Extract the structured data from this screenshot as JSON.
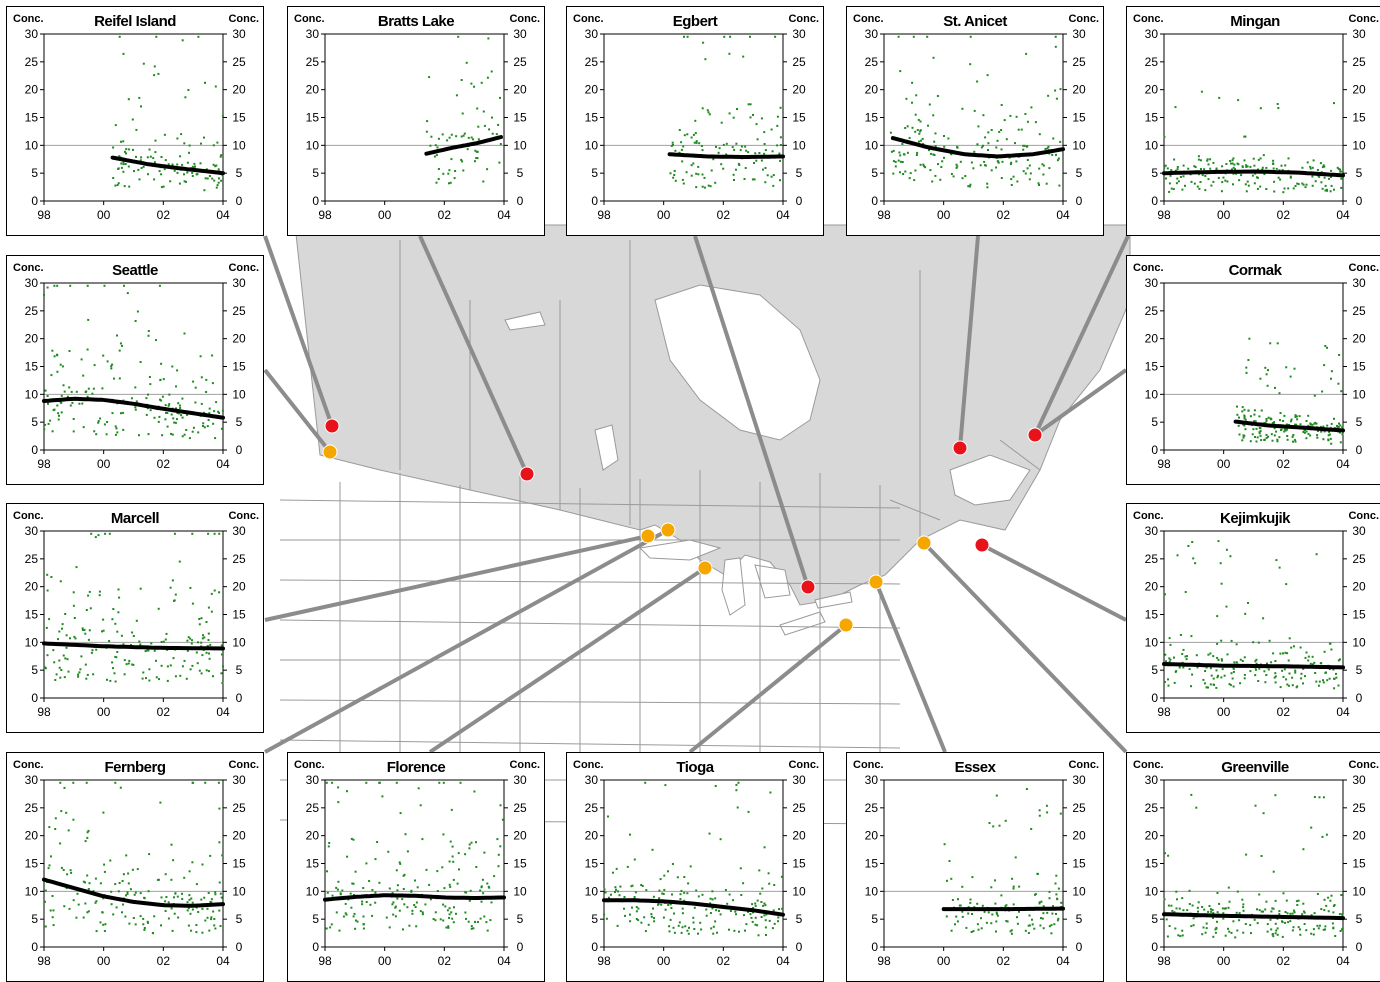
{
  "colors": {
    "land": "#d8d8d8",
    "border": "#9a9a9a",
    "water": "#ffffff",
    "leader": "#8c8c8c",
    "canada_site": "#e8121a",
    "us_site": "#f5a700",
    "points": "#1f8a1f",
    "trend": "#000000",
    "refline": "#a0a0a0"
  },
  "axis": {
    "unit_label": "Conc.",
    "y_ticks": [
      "0",
      "5",
      "10",
      "15",
      "20",
      "25",
      "30"
    ],
    "x_ticks": [
      "98",
      "00",
      "02",
      "04"
    ]
  },
  "chart_data": [
    {
      "type": "scatter",
      "title": "Reifel Island",
      "country": "Canada",
      "xlabel": "",
      "ylabel": "Conc.",
      "xlim": [
        1998,
        2004
      ],
      "ylim": [
        0,
        30
      ],
      "data_start": 2000.3,
      "data_end": 2004.0,
      "density": "medium",
      "spread": "wide",
      "trend": {
        "x": [
          2000.3,
          2001.5,
          2002.5,
          2004.0
        ],
        "y": [
          7.8,
          6.6,
          5.9,
          5.0
        ]
      }
    },
    {
      "type": "scatter",
      "title": "Bratts Lake",
      "country": "Canada",
      "xlabel": "",
      "ylabel": "Conc.",
      "xlim": [
        1998,
        2004
      ],
      "ylim": [
        0,
        30
      ],
      "data_start": 2001.4,
      "data_end": 2003.9,
      "density": "sparse",
      "spread": "wide",
      "trend": {
        "x": [
          2001.4,
          2002.3,
          2003.1,
          2003.9
        ],
        "y": [
          8.5,
          9.6,
          10.4,
          11.5
        ]
      }
    },
    {
      "type": "scatter",
      "title": "Egbert",
      "country": "Canada",
      "xlabel": "",
      "ylabel": "Conc.",
      "xlim": [
        1998,
        2004
      ],
      "ylim": [
        0,
        30
      ],
      "data_start": 2000.2,
      "data_end": 2004.0,
      "density": "medium",
      "spread": "wide",
      "trend": {
        "x": [
          2000.2,
          2001.5,
          2002.7,
          2004.0
        ],
        "y": [
          8.4,
          8.0,
          7.9,
          8.0
        ]
      }
    },
    {
      "type": "scatter",
      "title": "St. Anicet",
      "country": "Canada",
      "xlabel": "",
      "ylabel": "Conc.",
      "xlim": [
        1998,
        2004
      ],
      "ylim": [
        0,
        30
      ],
      "data_start": 1998.2,
      "data_end": 2004.0,
      "density": "dense",
      "spread": "wide",
      "trend": {
        "x": [
          1998.3,
          1999.5,
          2000.7,
          2001.8,
          2003.0,
          2004.0
        ],
        "y": [
          11.3,
          9.6,
          8.4,
          8.0,
          8.4,
          9.3
        ]
      }
    },
    {
      "type": "scatter",
      "title": "Mingan",
      "country": "Canada",
      "xlabel": "",
      "ylabel": "Conc.",
      "xlim": [
        1998,
        2004
      ],
      "ylim": [
        0,
        30
      ],
      "data_start": 1998.0,
      "data_end": 2004.0,
      "density": "dense",
      "spread": "narrow",
      "trend": {
        "x": [
          1998.0,
          1999.5,
          2001.0,
          2002.5,
          2004.0
        ],
        "y": [
          5.0,
          5.2,
          5.3,
          5.1,
          4.6
        ]
      }
    },
    {
      "type": "scatter",
      "title": "Seattle",
      "country": "US",
      "xlabel": "",
      "ylabel": "Conc.",
      "xlim": [
        1998,
        2004
      ],
      "ylim": [
        0,
        30
      ],
      "data_start": 1998.0,
      "data_end": 2004.0,
      "density": "dense",
      "spread": "wide",
      "trend": {
        "x": [
          1998.0,
          1999.0,
          2000.0,
          2001.0,
          2002.0,
          2003.0,
          2004.0
        ],
        "y": [
          8.8,
          9.2,
          9.0,
          8.3,
          7.4,
          6.6,
          5.8
        ]
      }
    },
    {
      "type": "scatter",
      "title": "Cormak",
      "country": "Canada",
      "xlabel": "",
      "ylabel": "Conc.",
      "xlim": [
        1998,
        2004
      ],
      "ylim": [
        0,
        30
      ],
      "data_start": 2000.4,
      "data_end": 2004.0,
      "density": "dense",
      "spread": "narrow",
      "trend": {
        "x": [
          2000.4,
          2001.5,
          2002.7,
          2004.0
        ],
        "y": [
          5.1,
          4.4,
          4.0,
          3.5
        ]
      }
    },
    {
      "type": "scatter",
      "title": "Marcell",
      "country": "US",
      "xlabel": "",
      "ylabel": "Conc.",
      "xlim": [
        1998,
        2004
      ],
      "ylim": [
        0,
        30
      ],
      "data_start": 1998.0,
      "data_end": 2004.0,
      "density": "dense",
      "spread": "wide",
      "trend": {
        "x": [
          1998.0,
          2000.0,
          2002.0,
          2004.0
        ],
        "y": [
          9.8,
          9.3,
          9.0,
          8.9
        ]
      }
    },
    {
      "type": "scatter",
      "title": "Kejimkujik",
      "country": "Canada",
      "xlabel": "",
      "ylabel": "Conc.",
      "xlim": [
        1998,
        2004
      ],
      "ylim": [
        0,
        30
      ],
      "data_start": 1998.0,
      "data_end": 2004.0,
      "density": "dense",
      "spread": "medium",
      "trend": {
        "x": [
          1998.0,
          2000.0,
          2002.0,
          2004.0
        ],
        "y": [
          6.1,
          5.8,
          5.7,
          5.5
        ]
      }
    },
    {
      "type": "scatter",
      "title": "Fernberg",
      "country": "US",
      "xlabel": "",
      "ylabel": "Conc.",
      "xlim": [
        1998,
        2004
      ],
      "ylim": [
        0,
        30
      ],
      "data_start": 1998.0,
      "data_end": 2004.0,
      "density": "dense",
      "spread": "wide",
      "trend": {
        "x": [
          1998.0,
          1999.0,
          2000.0,
          2001.0,
          2002.0,
          2003.0,
          2004.0
        ],
        "y": [
          12.1,
          10.6,
          9.1,
          8.1,
          7.5,
          7.4,
          7.7
        ]
      }
    },
    {
      "type": "scatter",
      "title": "Florence",
      "country": "US",
      "xlabel": "",
      "ylabel": "Conc.",
      "xlim": [
        1998,
        2004
      ],
      "ylim": [
        0,
        30
      ],
      "data_start": 1998.0,
      "data_end": 2004.0,
      "density": "dense",
      "spread": "wide",
      "trend": {
        "x": [
          1998.0,
          1999.0,
          2000.0,
          2001.0,
          2002.0,
          2003.0,
          2004.0
        ],
        "y": [
          8.5,
          9.0,
          9.3,
          9.2,
          8.9,
          8.8,
          8.9
        ]
      }
    },
    {
      "type": "scatter",
      "title": "Tioga",
      "country": "US",
      "xlabel": "",
      "ylabel": "Conc.",
      "xlim": [
        1998,
        2004
      ],
      "ylim": [
        0,
        30
      ],
      "data_start": 1998.0,
      "data_end": 2004.0,
      "density": "dense",
      "spread": "wide",
      "trend": {
        "x": [
          1998.0,
          1999.0,
          2000.0,
          2001.0,
          2002.0,
          2003.0,
          2004.0
        ],
        "y": [
          8.4,
          8.4,
          8.2,
          7.8,
          7.2,
          6.6,
          5.8
        ]
      }
    },
    {
      "type": "scatter",
      "title": "Essex",
      "country": "US",
      "xlabel": "",
      "ylabel": "Conc.",
      "xlim": [
        1998,
        2004
      ],
      "ylim": [
        0,
        30
      ],
      "data_start": 2000.0,
      "data_end": 2004.0,
      "density": "medium",
      "spread": "medium",
      "trend": {
        "x": [
          2000.0,
          2002.0,
          2004.0
        ],
        "y": [
          6.8,
          6.8,
          6.9
        ]
      }
    },
    {
      "type": "scatter",
      "title": "Greenville",
      "country": "US",
      "xlabel": "",
      "ylabel": "Conc.",
      "xlim": [
        1998,
        2004
      ],
      "ylim": [
        0,
        30
      ],
      "data_start": 1998.0,
      "data_end": 2004.0,
      "density": "dense",
      "spread": "medium",
      "trend": {
        "x": [
          1998.0,
          2000.0,
          2002.0,
          2004.0
        ],
        "y": [
          5.9,
          5.6,
          5.4,
          5.2
        ]
      }
    }
  ]
}
